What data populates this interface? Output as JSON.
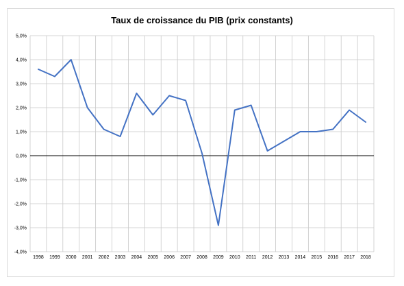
{
  "chart_data": {
    "type": "line",
    "title": "Taux de croissance du PIB (prix constants)",
    "xlabel": "",
    "ylabel": "",
    "categories": [
      "1998",
      "1999",
      "2000",
      "2001",
      "2002",
      "2003",
      "2004",
      "2005",
      "2006",
      "2007",
      "2008",
      "2009",
      "2010",
      "2011",
      "2012",
      "2013",
      "2014",
      "2015",
      "2016",
      "2017",
      "2018"
    ],
    "series": [
      {
        "values": [
          3.6,
          3.3,
          4.0,
          2.0,
          1.1,
          0.8,
          2.6,
          1.7,
          2.5,
          2.3,
          0.1,
          -2.9,
          1.9,
          2.1,
          0.2,
          0.6,
          1.0,
          1.0,
          1.1,
          1.9,
          1.4
        ]
      }
    ],
    "ylim": [
      -4,
      5
    ],
    "y_ticks": [
      5,
      4,
      3,
      2,
      1,
      0,
      -1,
      -2,
      -3,
      -4
    ],
    "y_tick_labels": [
      "5,0%",
      "4,0%",
      "3,0%",
      "2,0%",
      "1,0%",
      "0,0%",
      "-1,0%",
      "-2,0%",
      "-3,0%",
      "-4,0%"
    ],
    "grid": true,
    "legend": "none",
    "line_color": "#4472C4",
    "zero_line_color": "#000000",
    "grid_color": "#c8c8c8"
  }
}
